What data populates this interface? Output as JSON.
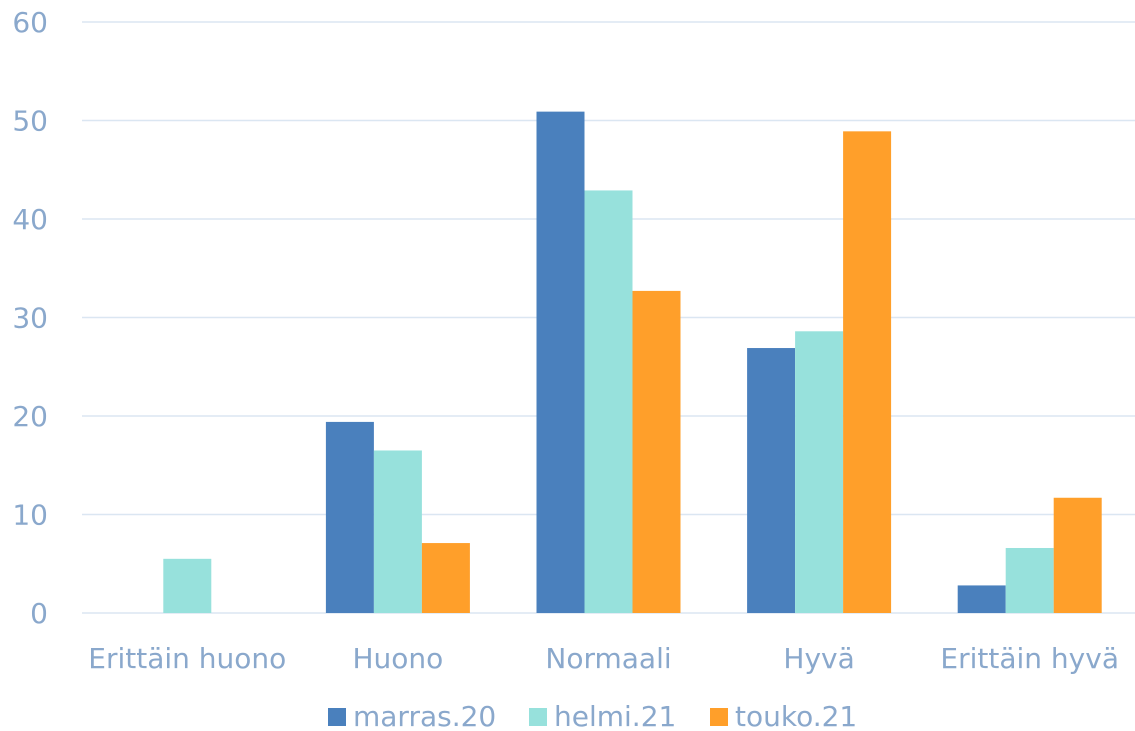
{
  "chart_data": {
    "type": "bar",
    "categories": [
      "Erittäin huono",
      "Huono",
      "Normaali",
      "Hyvä",
      "Erittäin hyvä"
    ],
    "series": [
      {
        "name": "marras.20",
        "color": "#4a80bd",
        "values": [
          0,
          19.4,
          50.9,
          26.9,
          2.8
        ]
      },
      {
        "name": "helmi.21",
        "color": "#97e1dc",
        "values": [
          5.5,
          16.5,
          42.9,
          28.6,
          6.6
        ]
      },
      {
        "name": "touko.21",
        "color": "#ff9f2a",
        "values": [
          0,
          7.1,
          32.7,
          48.9,
          11.7
        ]
      }
    ],
    "ylim": [
      0,
      60
    ],
    "yticks": [
      0,
      10,
      20,
      30,
      40,
      50,
      60
    ],
    "grid": true,
    "legend": "bottom"
  }
}
